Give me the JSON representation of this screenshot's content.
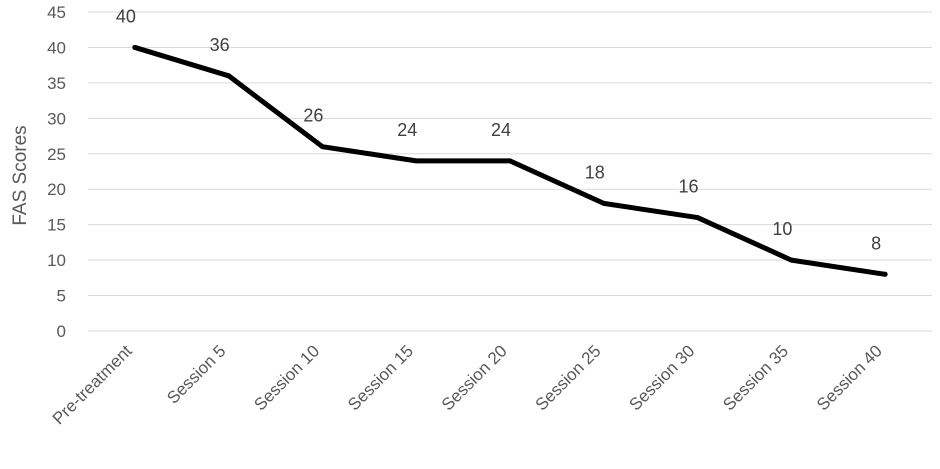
{
  "chart_data": {
    "type": "line",
    "title": "",
    "xlabel": "",
    "ylabel": "FAS Scores",
    "ylim": [
      0,
      45
    ],
    "yticks": [
      0,
      5,
      10,
      15,
      20,
      25,
      30,
      35,
      40,
      45
    ],
    "grid": true,
    "legend": "none",
    "categories": [
      "Pre-treatment",
      "Session 5",
      "Session 10",
      "Session 15",
      "Session 20",
      "Session 25",
      "Session 30",
      "Session 35",
      "Session 40"
    ],
    "series": [
      {
        "values": [
          40,
          36,
          26,
          24,
          24,
          18,
          16,
          10,
          8
        ],
        "color": "#000000"
      }
    ],
    "data_labels": [
      "40",
      "36",
      "26",
      "24",
      "24",
      "18",
      "16",
      "10",
      "8"
    ],
    "colors": {
      "line": "#000000",
      "grid": "#d9d9d9",
      "text": "#595959"
    }
  }
}
